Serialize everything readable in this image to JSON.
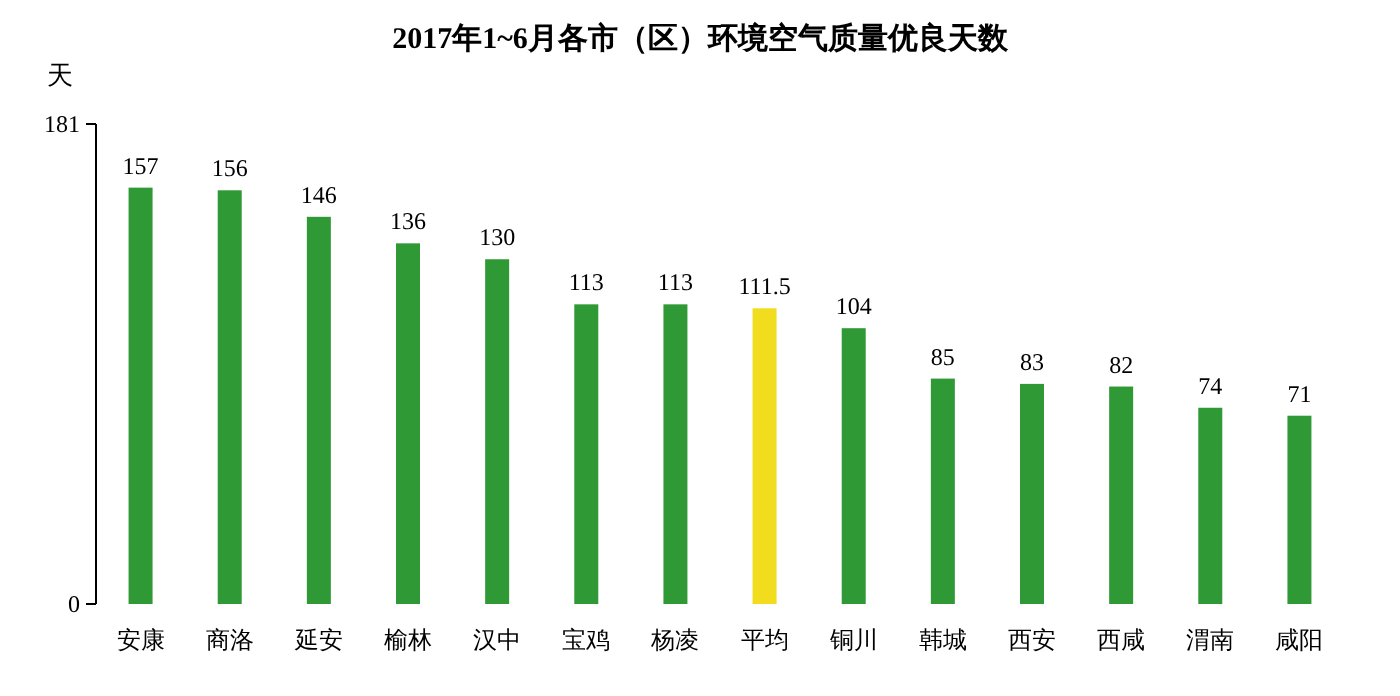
{
  "chart_data": {
    "type": "bar",
    "title": "2017年1~6月各市（区）环境空气质量优良天数",
    "ylabel": "天",
    "categories": [
      "安康",
      "商洛",
      "延安",
      "榆林",
      "汉中",
      "宝鸡",
      "杨凌",
      "平均",
      "铜川",
      "韩城",
      "西安",
      "西咸",
      "渭南",
      "咸阳"
    ],
    "values": [
      157,
      156,
      146,
      136,
      130,
      113,
      113,
      111.5,
      104,
      85,
      83,
      82,
      74,
      71
    ],
    "colors": [
      "#2f9a35",
      "#2f9a35",
      "#2f9a35",
      "#2f9a35",
      "#2f9a35",
      "#2f9a35",
      "#2f9a35",
      "#f2dc1e",
      "#2f9a35",
      "#2f9a35",
      "#2f9a35",
      "#2f9a35",
      "#2f9a35",
      "#2f9a35"
    ],
    "ylim": [
      0,
      181
    ],
    "yticks": [
      0,
      181
    ],
    "data_labels": true,
    "grid": false
  }
}
